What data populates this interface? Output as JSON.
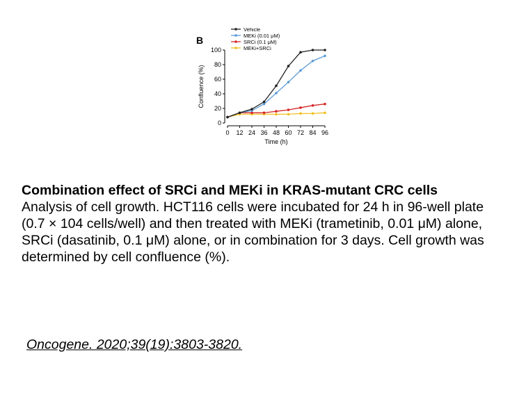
{
  "panel_label": "B",
  "chart_data": {
    "type": "line",
    "xlabel": "Time (h)",
    "ylabel": "Confluence (%)",
    "x": [
      0,
      12,
      24,
      36,
      48,
      60,
      72,
      84,
      96
    ],
    "xlim": [
      0,
      96
    ],
    "ylim": [
      0,
      100
    ],
    "xticks": [
      "0",
      "12",
      "24",
      "36",
      "48",
      "60",
      "72",
      "84",
      "96"
    ],
    "yticks": [
      "0",
      "20",
      "40",
      "60",
      "80",
      "100"
    ],
    "grid": false,
    "legend_position": "top-left",
    "series": [
      {
        "name": "Vehicle",
        "color": "#222222",
        "values": [
          8,
          14,
          19,
          29,
          51,
          78,
          97,
          100,
          100
        ]
      },
      {
        "name": "MEKi (0.01 μM)",
        "color": "#5b9bd5",
        "values": [
          8,
          14,
          17,
          26,
          41,
          56,
          72,
          85,
          92
        ]
      },
      {
        "name": "SRCi (0.1 μM)",
        "color": "#d62728",
        "values": [
          8,
          14,
          14,
          14,
          16,
          18,
          21,
          24,
          26
        ]
      },
      {
        "name": "MEKi+SRCi",
        "color": "#f0c020",
        "values": [
          8,
          12,
          12,
          12,
          12,
          12,
          13,
          13,
          14
        ]
      }
    ]
  },
  "caption": {
    "title": "Combination effect of SRCi and MEKi in KRAS-mutant CRC cells",
    "body": "Analysis of cell growth. HCT116 cells were incubated for 24 h in 96-well plate (0.7 × 104 cells/well) and then treated with MEKi (trametinib, 0.01 μM) alone, SRCi (dasatinib, 0.1 μM) alone, or in combination for 3 days. Cell growth was determined by cell confluence (%)."
  },
  "citation": "Oncogene. 2020;39(19):3803-3820."
}
